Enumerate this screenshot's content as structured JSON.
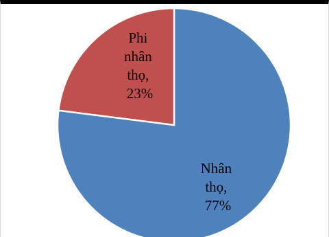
{
  "chart_data": {
    "type": "pie",
    "title": "",
    "start": "12 o'clock, clockwise",
    "slices": [
      {
        "name": "Nhân thọ",
        "value": 77,
        "percent_label": "77%",
        "color": "#4f81bd"
      },
      {
        "name": "Phi nhân thọ",
        "value": 23,
        "percent_label": "23%",
        "color": "#c0504d"
      }
    ],
    "labels": {
      "s0": [
        "Nhân",
        "thọ,",
        "77%"
      ],
      "s1": [
        "Phi",
        "nhân",
        "thọ,",
        "23%"
      ]
    },
    "slice_border_color": "#ffffff",
    "legend": "none"
  }
}
